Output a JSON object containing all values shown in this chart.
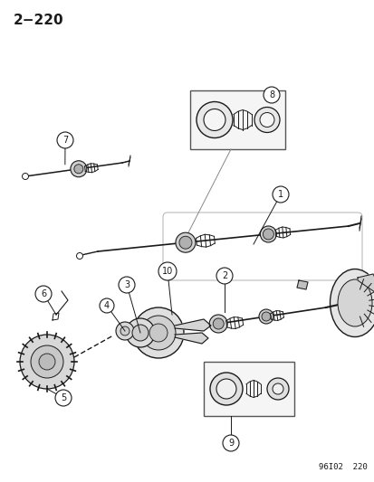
{
  "title": "2−220",
  "footer": "96I02  220",
  "bg_color": "#ffffff",
  "line_color": "#1a1a1a",
  "fig_width": 4.14,
  "fig_height": 5.33,
  "dpi": 100
}
